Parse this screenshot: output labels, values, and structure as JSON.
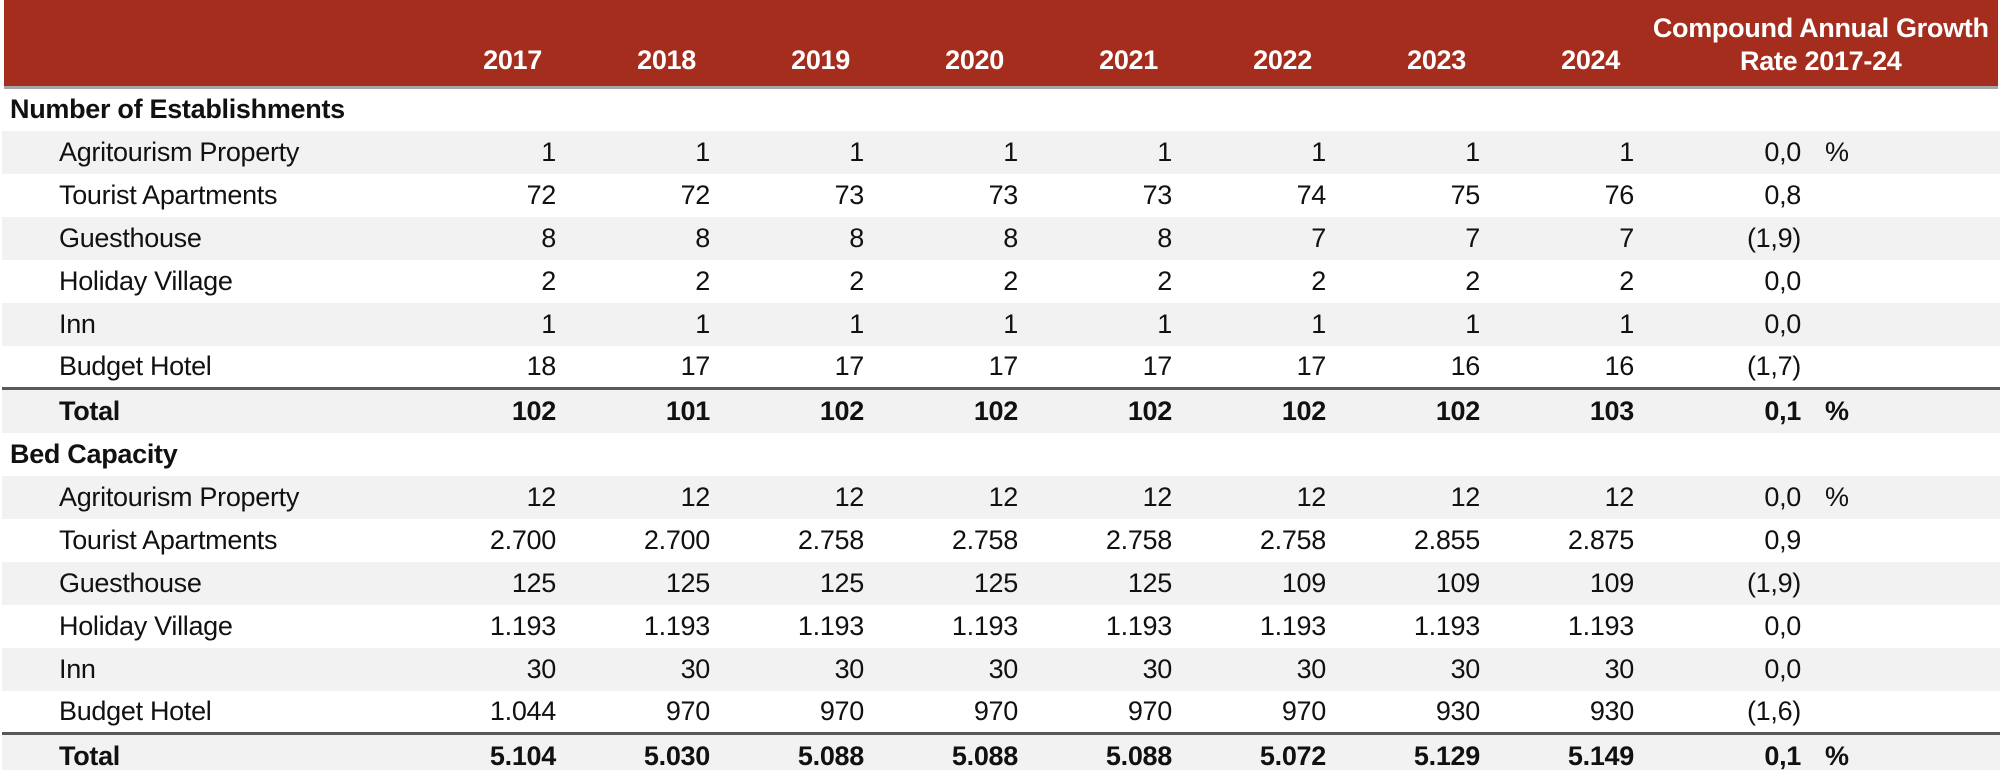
{
  "colors": {
    "header_bg": "#A52D1E",
    "header_text": "#FFFFFF",
    "stripe": "#F2F2F2",
    "header_border": "#A6A6A6",
    "total_border": "#595959",
    "text": "#111111"
  },
  "chart_data": {
    "type": "table",
    "years": [
      "2017",
      "2018",
      "2019",
      "2020",
      "2021",
      "2022",
      "2023",
      "2024"
    ],
    "cagr_header": {
      "line1": "Compound Annual Growth",
      "line2": "Rate 2017-24"
    },
    "sections": [
      {
        "title": "Number of Establishments",
        "rows": [
          {
            "label": "Agritourism Property",
            "values": [
              "1",
              "1",
              "1",
              "1",
              "1",
              "1",
              "1",
              "1"
            ],
            "cagr": "0,0",
            "pct": "%"
          },
          {
            "label": "Tourist Apartments",
            "values": [
              "72",
              "72",
              "73",
              "73",
              "73",
              "74",
              "75",
              "76"
            ],
            "cagr": "0,8",
            "pct": ""
          },
          {
            "label": "Guesthouse",
            "values": [
              "8",
              "8",
              "8",
              "8",
              "8",
              "7",
              "7",
              "7"
            ],
            "cagr": "(1,9)",
            "pct": ""
          },
          {
            "label": "Holiday Village",
            "values": [
              "2",
              "2",
              "2",
              "2",
              "2",
              "2",
              "2",
              "2"
            ],
            "cagr": "0,0",
            "pct": ""
          },
          {
            "label": "Inn",
            "values": [
              "1",
              "1",
              "1",
              "1",
              "1",
              "1",
              "1",
              "1"
            ],
            "cagr": "0,0",
            "pct": ""
          },
          {
            "label": "Budget Hotel",
            "values": [
              "18",
              "17",
              "17",
              "17",
              "17",
              "17",
              "16",
              "16"
            ],
            "cagr": "(1,7)",
            "pct": ""
          }
        ],
        "total": {
          "label": "Total",
          "values": [
            "102",
            "101",
            "102",
            "102",
            "102",
            "102",
            "102",
            "103"
          ],
          "cagr": "0,1",
          "pct": "%"
        }
      },
      {
        "title": "Bed Capacity",
        "rows": [
          {
            "label": "Agritourism Property",
            "values": [
              "12",
              "12",
              "12",
              "12",
              "12",
              "12",
              "12",
              "12"
            ],
            "cagr": "0,0",
            "pct": "%"
          },
          {
            "label": "Tourist Apartments",
            "values": [
              "2.700",
              "2.700",
              "2.758",
              "2.758",
              "2.758",
              "2.758",
              "2.855",
              "2.875"
            ],
            "cagr": "0,9",
            "pct": ""
          },
          {
            "label": "Guesthouse",
            "values": [
              "125",
              "125",
              "125",
              "125",
              "125",
              "109",
              "109",
              "109"
            ],
            "cagr": "(1,9)",
            "pct": ""
          },
          {
            "label": "Holiday Village",
            "values": [
              "1.193",
              "1.193",
              "1.193",
              "1.193",
              "1.193",
              "1.193",
              "1.193",
              "1.193"
            ],
            "cagr": "0,0",
            "pct": ""
          },
          {
            "label": "Inn",
            "values": [
              "30",
              "30",
              "30",
              "30",
              "30",
              "30",
              "30",
              "30"
            ],
            "cagr": "0,0",
            "pct": ""
          },
          {
            "label": "Budget Hotel",
            "values": [
              "1.044",
              "970",
              "970",
              "970",
              "970",
              "970",
              "930",
              "930"
            ],
            "cagr": "(1,6)",
            "pct": ""
          }
        ],
        "total": {
          "label": "Total",
          "values": [
            "5.104",
            "5.030",
            "5.088",
            "5.088",
            "5.088",
            "5.072",
            "5.129",
            "5.149"
          ],
          "cagr": "0,1",
          "pct": "%"
        }
      }
    ]
  }
}
